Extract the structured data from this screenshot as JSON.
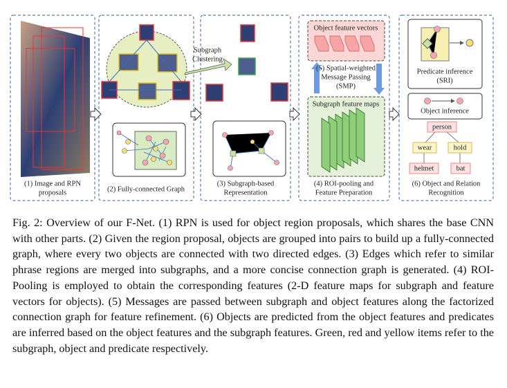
{
  "figure": {
    "panels": [
      {
        "label": [
          "(1) Image and RPN",
          "proposals"
        ]
      },
      {
        "label": [
          "(2) Fully-connected Graph"
        ]
      },
      {
        "label": [
          "(3) Subgraph-based",
          "Representation"
        ]
      },
      {
        "label": [
          "(4) ROI-pooling and",
          "Feature Preparation"
        ]
      },
      {
        "label": [
          "(6) Object and Relation",
          "Recognition"
        ]
      }
    ],
    "clustering_arrow": [
      "Subgraph",
      "Clustering"
    ],
    "object_features": "Object feature vectors",
    "message_passing": [
      "(5) Spatial-weighted",
      "Message Passing",
      "(SMP)"
    ],
    "subgraph_features": "Subgraph feature maps",
    "predicate_inference": [
      "Predicate inference",
      "(SRI)"
    ],
    "object_inference": "Object inference",
    "tree": {
      "nodes": [
        "person",
        "wear",
        "hold",
        "helmet",
        "bat"
      ]
    }
  },
  "caption": {
    "label": "Fig. 2:",
    "text": "Overview of our F-Net. (1) RPN is used for object region proposals, which shares the base CNN with other parts. (2) Given the region proposal, objects are grouped into pairs to build up a fully-connected graph, where every two objects are connected with two directed edges. (3) Edges which refer to similar phrase regions are merged into subgraphs, and a more concise connection graph is generated. (4) ROI-Pooling is employed to obtain the corresponding features (2-D feature maps for subgraph and feature vectors for objects). (5) Messages are passed between subgraph and object features along the factorized connection graph for feature refinement. (6) Objects are predicted from the object features and predicates are inferred based on the object features and the subgraph features. Green, red and yellow items refer to the subgraph, object and predicate respectively."
  }
}
